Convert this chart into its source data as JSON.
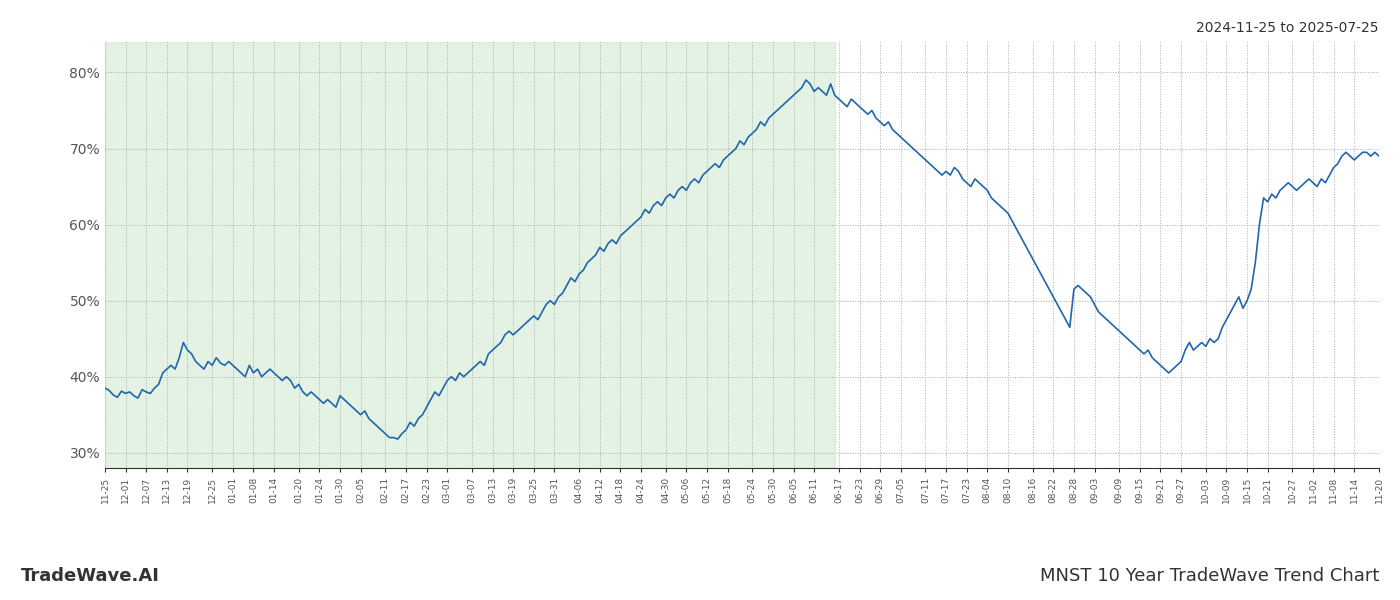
{
  "title_top_right": "2024-11-25 to 2025-07-25",
  "title_bottom_right": "MNST 10 Year TradeWave Trend Chart",
  "title_bottom_left": "TradeWave.AI",
  "line_color": "#2166ac",
  "line_width": 1.2,
  "bg_color": "#ffffff",
  "shaded_region_color": "#c8e6c8",
  "shaded_region_alpha": 0.5,
  "grid_color": "#aaaaaa",
  "ylim": [
    28,
    84
  ],
  "yticks": [
    30,
    40,
    50,
    60,
    70,
    80
  ],
  "ytick_labels": [
    "30%",
    "40%",
    "50%",
    "60%",
    "70%",
    "80%"
  ],
  "x_labels": [
    "11-25",
    "12-01",
    "12-07",
    "12-13",
    "12-19",
    "12-25",
    "01-01",
    "01-08",
    "01-14",
    "01-20",
    "01-24",
    "01-30",
    "02-05",
    "02-11",
    "02-17",
    "02-23",
    "03-01",
    "03-07",
    "03-13",
    "03-19",
    "03-25",
    "03-31",
    "04-06",
    "04-12",
    "04-18",
    "04-24",
    "04-30",
    "05-06",
    "05-12",
    "05-18",
    "05-24",
    "05-30",
    "06-05",
    "06-11",
    "06-17",
    "06-23",
    "06-29",
    "07-05",
    "07-11",
    "07-17",
    "07-23",
    "08-04",
    "08-10",
    "08-16",
    "08-22",
    "08-28",
    "09-03",
    "09-09",
    "09-15",
    "09-21",
    "09-27",
    "10-03",
    "10-09",
    "10-15",
    "10-21",
    "10-27",
    "11-02",
    "11-08",
    "11-14",
    "11-20"
  ],
  "values": [
    38.5,
    38.2,
    37.6,
    37.3,
    38.1,
    37.8,
    38.0,
    37.5,
    37.2,
    38.3,
    38.0,
    37.8,
    38.5,
    39.0,
    40.5,
    41.0,
    41.5,
    41.0,
    42.5,
    44.5,
    43.5,
    43.0,
    42.0,
    41.5,
    41.0,
    42.0,
    41.5,
    42.5,
    41.8,
    41.5,
    42.0,
    41.5,
    41.0,
    40.5,
    40.0,
    41.5,
    40.5,
    41.0,
    40.0,
    40.5,
    41.0,
    40.5,
    40.0,
    39.5,
    40.0,
    39.5,
    38.5,
    39.0,
    38.0,
    37.5,
    38.0,
    37.5,
    37.0,
    36.5,
    37.0,
    36.5,
    36.0,
    37.5,
    37.0,
    36.5,
    36.0,
    35.5,
    35.0,
    35.5,
    34.5,
    34.0,
    33.5,
    33.0,
    32.5,
    32.0,
    32.0,
    31.8,
    32.5,
    33.0,
    34.0,
    33.5,
    34.5,
    35.0,
    36.0,
    37.0,
    38.0,
    37.5,
    38.5,
    39.5,
    40.0,
    39.5,
    40.5,
    40.0,
    40.5,
    41.0,
    41.5,
    42.0,
    41.5,
    43.0,
    43.5,
    44.0,
    44.5,
    45.5,
    46.0,
    45.5,
    46.0,
    46.5,
    47.0,
    47.5,
    48.0,
    47.5,
    48.5,
    49.5,
    50.0,
    49.5,
    50.5,
    51.0,
    52.0,
    53.0,
    52.5,
    53.5,
    54.0,
    55.0,
    55.5,
    56.0,
    57.0,
    56.5,
    57.5,
    58.0,
    57.5,
    58.5,
    59.0,
    59.5,
    60.0,
    60.5,
    61.0,
    62.0,
    61.5,
    62.5,
    63.0,
    62.5,
    63.5,
    64.0,
    63.5,
    64.5,
    65.0,
    64.5,
    65.5,
    66.0,
    65.5,
    66.5,
    67.0,
    67.5,
    68.0,
    67.5,
    68.5,
    69.0,
    69.5,
    70.0,
    71.0,
    70.5,
    71.5,
    72.0,
    72.5,
    73.5,
    73.0,
    74.0,
    74.5,
    75.0,
    75.5,
    76.0,
    76.5,
    77.0,
    77.5,
    78.0,
    79.0,
    78.5,
    77.5,
    78.0,
    77.5,
    77.0,
    78.5,
    77.0,
    76.5,
    76.0,
    75.5,
    76.5,
    76.0,
    75.5,
    75.0,
    74.5,
    75.0,
    74.0,
    73.5,
    73.0,
    73.5,
    72.5,
    72.0,
    71.5,
    71.0,
    70.5,
    70.0,
    69.5,
    69.0,
    68.5,
    68.0,
    67.5,
    67.0,
    66.5,
    67.0,
    66.5,
    67.5,
    67.0,
    66.0,
    65.5,
    65.0,
    66.0,
    65.5,
    65.0,
    64.5,
    63.5,
    63.0,
    62.5,
    62.0,
    61.5,
    60.5,
    59.5,
    58.5,
    57.5,
    56.5,
    55.5,
    54.5,
    53.5,
    52.5,
    51.5,
    50.5,
    49.5,
    48.5,
    47.5,
    46.5,
    51.5,
    52.0,
    51.5,
    51.0,
    50.5,
    49.5,
    48.5,
    48.0,
    47.5,
    47.0,
    46.5,
    46.0,
    45.5,
    45.0,
    44.5,
    44.0,
    43.5,
    43.0,
    43.5,
    42.5,
    42.0,
    41.5,
    41.0,
    40.5,
    41.0,
    41.5,
    42.0,
    43.5,
    44.5,
    43.5,
    44.0,
    44.5,
    44.0,
    45.0,
    44.5,
    45.0,
    46.5,
    47.5,
    48.5,
    49.5,
    50.5,
    49.0,
    50.0,
    51.5,
    55.0,
    60.0,
    63.5,
    63.0,
    64.0,
    63.5,
    64.5,
    65.0,
    65.5,
    65.0,
    64.5,
    65.0,
    65.5,
    66.0,
    65.5,
    65.0,
    66.0,
    65.5,
    66.5,
    67.5,
    68.0,
    69.0,
    69.5,
    69.0,
    68.5,
    69.0,
    69.5,
    69.5,
    69.0,
    69.5,
    69.0
  ]
}
